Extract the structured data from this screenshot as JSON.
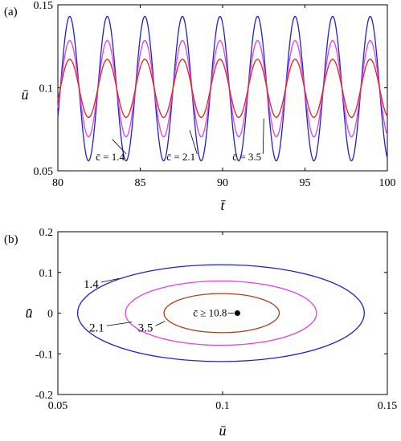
{
  "chart_data": [
    {
      "panel": "(a)",
      "type": "line",
      "xlabel": "t̄",
      "ylabel": "ū",
      "xlim": [
        80,
        100
      ],
      "ylim": [
        0.05,
        0.15
      ],
      "x_ticks": [
        "80",
        "85",
        "90",
        "95",
        "100"
      ],
      "y_ticks": [
        "0.05",
        "0.1",
        "0.15"
      ],
      "period": 2.28,
      "first_peak_t": 80.72,
      "series": [
        {
          "name": "c̄ = 1.4",
          "color": "#2020d0",
          "center": 0.0995,
          "amplitude": 0.0435
        },
        {
          "name": "c̄ = 2.1",
          "color": "#e040e0",
          "center": 0.0995,
          "amplitude": 0.029
        },
        {
          "name": "c̄ = 3.5",
          "color": "#e02020",
          "center": 0.0997,
          "amplitude": 0.0175
        }
      ],
      "annotations": [
        {
          "text": "c̄ = 1.4",
          "x": 82.3,
          "y": 0.0582,
          "arrow_to": [
            83.3,
            0.069
          ]
        },
        {
          "text": "c̄ = 2.1",
          "x": 86.6,
          "y": 0.0582,
          "arrow_to": [
            88.0,
            0.0745
          ]
        },
        {
          "text": "c̄ = 3.5",
          "x": 90.6,
          "y": 0.0582,
          "arrow_to": [
            92.5,
            0.0815
          ]
        }
      ]
    },
    {
      "panel": "(b)",
      "type": "line",
      "xlabel": "ū",
      "ylabel": "u̇̄",
      "xlim": [
        0.05,
        0.15
      ],
      "ylim": [
        -0.2,
        0.2
      ],
      "x_ticks": [
        "0.05",
        "0.1",
        "0.15"
      ],
      "y_ticks": [
        "-0.2",
        "-0.1",
        "0",
        "0.1",
        "0.2"
      ],
      "series": [
        {
          "name": "1.4",
          "color": "#2020d0",
          "cx": 0.0995,
          "cy": 0.0,
          "rx": 0.0435,
          "ry": 0.119
        },
        {
          "name": "2.1",
          "color": "#e040e0",
          "cx": 0.0995,
          "cy": 0.0,
          "rx": 0.029,
          "ry": 0.079
        },
        {
          "name": "3.5",
          "color": "#a84020",
          "cx": 0.0997,
          "cy": 0.0,
          "rx": 0.0175,
          "ry": 0.048
        }
      ],
      "fixed_point": {
        "label": "c̄ ≥ 10.8",
        "x": 0.1045,
        "y": 0.0
      },
      "annotations": [
        {
          "text": "1.4",
          "x": 0.0578,
          "y": 0.072,
          "arrow_to": [
            0.0685,
            0.085
          ]
        },
        {
          "text": "2.1",
          "x": 0.0595,
          "y": -0.035,
          "arrow_to": [
            0.0725,
            -0.022
          ]
        },
        {
          "text": "3.5",
          "x": 0.0743,
          "y": -0.035,
          "arrow_to": [
            0.0825,
            -0.02
          ]
        }
      ]
    }
  ]
}
